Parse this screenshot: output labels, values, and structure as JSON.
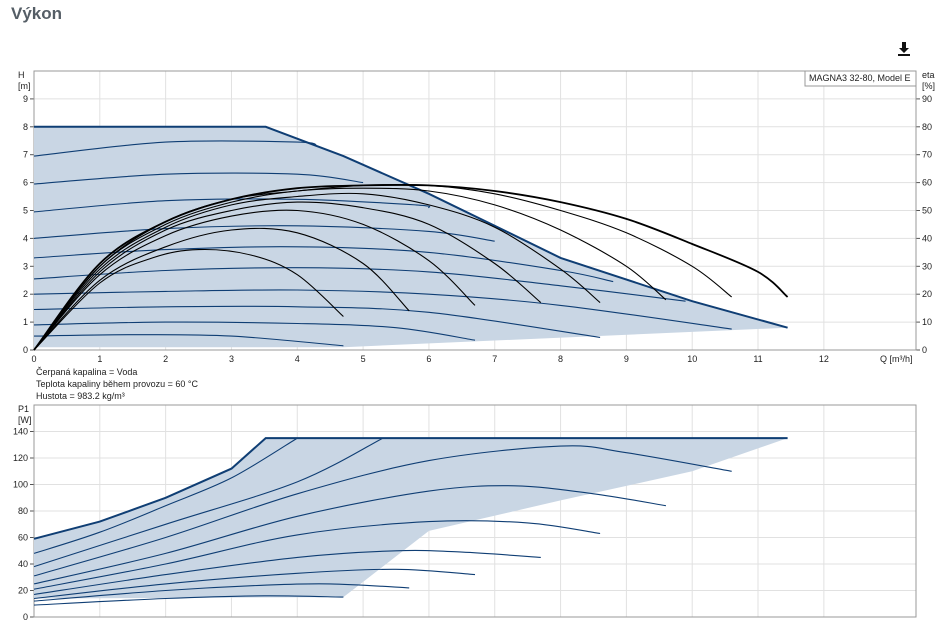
{
  "page": {
    "title": "Výkon",
    "download_icon": "download-icon"
  },
  "model_label": "MAGNA3 32-80, Model E",
  "fluid_info": [
    "Čerpaná kapalina = Voda",
    "Teplota kapaliny během provozu = 60 °C",
    "Hustota = 983.2 kg/m³"
  ],
  "colors": {
    "curve": "#0f3e74",
    "fill": "#c9d6e4",
    "eff": "#000000",
    "grid": "#e1e1e1"
  },
  "chart_data": [
    {
      "type": "line",
      "name": "head",
      "y_label_top": "H",
      "y_unit": "[m]",
      "y2_label_top": "eta",
      "y2_unit": "[%]",
      "x_label": "Q [m³/h]",
      "xlim": [
        0,
        13.4
      ],
      "ylim": [
        0,
        10
      ],
      "y2lim": [
        0,
        100
      ],
      "x_ticks": [
        0,
        1,
        2,
        3,
        4,
        5,
        6,
        7,
        8,
        9,
        10,
        11,
        12
      ],
      "y_ticks": [
        0,
        1,
        2,
        3,
        4,
        5,
        6,
        7,
        8,
        9
      ],
      "y2_ticks": [
        0,
        10,
        20,
        30,
        40,
        50,
        60,
        70,
        80,
        90
      ],
      "envelope": [
        [
          0,
          8
        ],
        [
          3.52,
          8
        ],
        [
          4.7,
          6.95
        ],
        [
          6,
          5.6
        ],
        [
          8,
          3.3
        ],
        [
          10,
          1.75
        ],
        [
          11.45,
          0.8
        ],
        [
          4.7,
          0.1
        ],
        [
          0,
          0.1
        ]
      ],
      "max_curve": [
        [
          0,
          8
        ],
        [
          3.52,
          8
        ],
        [
          4.7,
          6.95
        ],
        [
          6,
          5.6
        ],
        [
          8,
          3.3
        ],
        [
          10,
          1.75
        ],
        [
          11.45,
          0.8
        ]
      ],
      "head_curves": [
        [
          [
            0,
            6.95
          ],
          [
            2,
            7.45
          ],
          [
            4,
            7.45
          ],
          [
            4.3,
            7.3
          ]
        ],
        [
          [
            0,
            5.95
          ],
          [
            2,
            6.3
          ],
          [
            4,
            6.3
          ],
          [
            5,
            6.0
          ]
        ],
        [
          [
            0,
            4.95
          ],
          [
            2,
            5.35
          ],
          [
            4,
            5.4
          ],
          [
            5.8,
            5.2
          ],
          [
            6,
            5.1
          ]
        ],
        [
          [
            0,
            4.0
          ],
          [
            2,
            4.35
          ],
          [
            4,
            4.45
          ],
          [
            6,
            4.25
          ],
          [
            7,
            3.9
          ]
        ],
        [
          [
            0,
            3.3
          ],
          [
            2,
            3.6
          ],
          [
            4,
            3.7
          ],
          [
            6,
            3.5
          ],
          [
            8,
            2.85
          ],
          [
            8.8,
            2.45
          ]
        ],
        [
          [
            0,
            2.55
          ],
          [
            2,
            2.85
          ],
          [
            4,
            2.95
          ],
          [
            6,
            2.8
          ],
          [
            8,
            2.3
          ],
          [
            9.9,
            1.75
          ]
        ],
        [
          [
            0,
            2.0
          ],
          [
            2,
            2.1
          ],
          [
            4,
            2.15
          ],
          [
            6,
            2.0
          ],
          [
            8,
            1.6
          ],
          [
            10.6,
            0.75
          ]
        ],
        [
          [
            0,
            1.45
          ],
          [
            2,
            1.55
          ],
          [
            4,
            1.55
          ],
          [
            6,
            1.35
          ],
          [
            8.6,
            0.45
          ]
        ],
        [
          [
            0,
            0.9
          ],
          [
            2,
            1.0
          ],
          [
            4,
            0.95
          ],
          [
            5.5,
            0.8
          ],
          [
            6.7,
            0.35
          ]
        ],
        [
          [
            0,
            0.5
          ],
          [
            1.5,
            0.55
          ],
          [
            3,
            0.5
          ],
          [
            4.7,
            0.15
          ]
        ]
      ],
      "efficiency_curves": [
        [
          [
            0,
            0
          ],
          [
            1,
            24
          ],
          [
            1.8,
            33
          ],
          [
            2.5,
            36
          ],
          [
            3.3,
            34
          ],
          [
            4,
            27
          ],
          [
            4.7,
            12
          ]
        ],
        [
          [
            0,
            0
          ],
          [
            1,
            25
          ],
          [
            2,
            37
          ],
          [
            3,
            43
          ],
          [
            4,
            42
          ],
          [
            5,
            31
          ],
          [
            5.7,
            14
          ]
        ],
        [
          [
            0,
            0
          ],
          [
            1,
            27
          ],
          [
            2,
            41
          ],
          [
            3,
            48
          ],
          [
            4,
            50
          ],
          [
            5,
            45
          ],
          [
            6,
            32
          ],
          [
            6.7,
            16
          ]
        ],
        [
          [
            0,
            0
          ],
          [
            1,
            28
          ],
          [
            2,
            43
          ],
          [
            3,
            50
          ],
          [
            4,
            53
          ],
          [
            5,
            51
          ],
          [
            6,
            45
          ],
          [
            7,
            31
          ],
          [
            7.7,
            17
          ]
        ],
        [
          [
            0,
            0
          ],
          [
            1,
            29
          ],
          [
            2,
            44
          ],
          [
            3,
            52
          ],
          [
            4,
            55
          ],
          [
            5,
            56
          ],
          [
            6,
            52
          ],
          [
            7,
            44
          ],
          [
            8,
            29
          ],
          [
            8.6,
            17
          ]
        ],
        [
          [
            0,
            0
          ],
          [
            1,
            30
          ],
          [
            2,
            45
          ],
          [
            3,
            53
          ],
          [
            4,
            57
          ],
          [
            5,
            58
          ],
          [
            6,
            57
          ],
          [
            7,
            52
          ],
          [
            8,
            43
          ],
          [
            9,
            30
          ],
          [
            9.6,
            18
          ]
        ],
        [
          [
            0,
            0
          ],
          [
            1,
            30
          ],
          [
            2,
            46
          ],
          [
            3,
            54
          ],
          [
            4,
            57
          ],
          [
            5,
            59
          ],
          [
            6,
            59
          ],
          [
            7,
            56
          ],
          [
            8,
            50
          ],
          [
            9,
            42
          ],
          [
            10,
            30
          ],
          [
            10.6,
            19
          ]
        ],
        [
          [
            0,
            0
          ],
          [
            1,
            31
          ],
          [
            2,
            46
          ],
          [
            3,
            54
          ],
          [
            4,
            58
          ],
          [
            5,
            59
          ],
          [
            6,
            59
          ],
          [
            7,
            57
          ],
          [
            8,
            53
          ],
          [
            9,
            47
          ],
          [
            10,
            38
          ],
          [
            11,
            28
          ],
          [
            11.45,
            19
          ]
        ]
      ]
    },
    {
      "type": "line",
      "name": "power",
      "y_label_top": "P1",
      "y_unit": "[W]",
      "xlim": [
        0,
        13.4
      ],
      "ylim": [
        0,
        160
      ],
      "y_ticks": [
        0,
        20,
        40,
        60,
        80,
        100,
        120,
        140
      ],
      "envelope": [
        [
          0,
          59
        ],
        [
          1,
          72
        ],
        [
          2,
          90
        ],
        [
          3,
          112
        ],
        [
          3.52,
          135
        ],
        [
          11.45,
          135
        ],
        [
          10,
          110
        ],
        [
          8,
          88
        ],
        [
          6,
          65
        ],
        [
          4.7,
          15
        ],
        [
          0,
          14
        ]
      ],
      "max_curve": [
        [
          0,
          59
        ],
        [
          1,
          72
        ],
        [
          2,
          90
        ],
        [
          3,
          112
        ],
        [
          3.52,
          135
        ],
        [
          11.45,
          135
        ]
      ],
      "power_curves": [
        [
          [
            0,
            48
          ],
          [
            1,
            64
          ],
          [
            2,
            84
          ],
          [
            3,
            105
          ],
          [
            4,
            135
          ]
        ],
        [
          [
            0,
            38
          ],
          [
            2,
            70
          ],
          [
            4,
            102
          ],
          [
            5.3,
            135
          ]
        ],
        [
          [
            0,
            31
          ],
          [
            2,
            60
          ],
          [
            4,
            93
          ],
          [
            6,
            118
          ],
          [
            8,
            129
          ],
          [
            9,
            124
          ],
          [
            10.6,
            110
          ]
        ],
        [
          [
            0,
            25
          ],
          [
            2,
            48
          ],
          [
            4,
            76
          ],
          [
            6,
            95
          ],
          [
            7.3,
            99
          ],
          [
            8.5,
            93
          ],
          [
            9.6,
            84
          ]
        ],
        [
          [
            0,
            21
          ],
          [
            2,
            40
          ],
          [
            4,
            62
          ],
          [
            6,
            72
          ],
          [
            7.5,
            71
          ],
          [
            8.6,
            63
          ]
        ],
        [
          [
            0,
            17
          ],
          [
            2,
            32
          ],
          [
            4,
            45
          ],
          [
            5.5,
            50
          ],
          [
            6.5,
            49
          ],
          [
            7.7,
            45
          ]
        ],
        [
          [
            0,
            14
          ],
          [
            2,
            25
          ],
          [
            4,
            33
          ],
          [
            5.5,
            36
          ],
          [
            6.7,
            32
          ]
        ],
        [
          [
            0,
            12
          ],
          [
            2,
            20
          ],
          [
            3.5,
            24
          ],
          [
            4.5,
            25
          ],
          [
            5.7,
            22
          ]
        ],
        [
          [
            0,
            9
          ],
          [
            2,
            14
          ],
          [
            3.5,
            16
          ],
          [
            4.7,
            15
          ]
        ]
      ]
    }
  ]
}
